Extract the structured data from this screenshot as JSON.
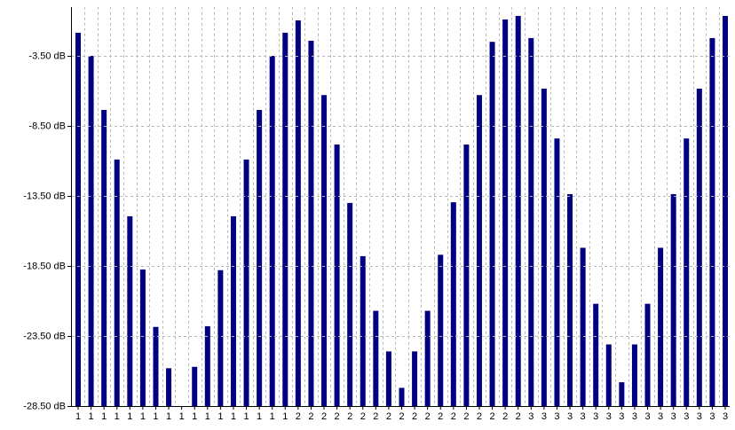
{
  "chart_data": {
    "type": "bar",
    "color": "#000080",
    "grid": true,
    "categories": [
      "1",
      "1",
      "1",
      "1",
      "1",
      "1",
      "1",
      "1",
      "1",
      "1",
      "1",
      "1",
      "1",
      "1",
      "1",
      "1",
      "1",
      "2",
      "2",
      "2",
      "2",
      "2",
      "2",
      "2",
      "2",
      "2",
      "2",
      "2",
      "2",
      "2",
      "2",
      "2",
      "2",
      "2",
      "2",
      "3",
      "3",
      "3",
      "3",
      "3",
      "3",
      "3",
      "3",
      "3",
      "3",
      "3",
      "3",
      "3",
      "3",
      "3",
      "3"
    ],
    "values": [
      -1.85,
      -3.5,
      -7.36,
      -10.9,
      -14.95,
      -18.75,
      -22.85,
      -25.8,
      null,
      -25.7,
      -22.8,
      -18.8,
      -14.95,
      -10.9,
      -7.36,
      -3.5,
      -1.85,
      -0.97,
      -2.42,
      -6.3,
      -9.83,
      -14.0,
      -17.8,
      -21.7,
      -24.6,
      -27.2,
      -24.6,
      -21.7,
      -17.7,
      -13.95,
      -9.83,
      -6.3,
      -2.5,
      -0.9,
      -0.65,
      -2.23,
      -5.84,
      -9.4,
      -13.37,
      -17.2,
      -21.2,
      -24.1,
      -26.8,
      -24.1,
      -21.2,
      -17.2,
      -13.37,
      -9.4,
      -5.84,
      -2.23,
      -0.65
    ],
    "ylim": [
      -28.5,
      0
    ],
    "yticks": [
      {
        "value": -28.5,
        "label": "-28.50 dB"
      },
      {
        "value": -23.5,
        "label": "-23.50 dB"
      },
      {
        "value": -18.5,
        "label": "-18.50 dB"
      },
      {
        "value": -13.5,
        "label": "-13.50 dB"
      },
      {
        "value": -8.5,
        "label": "-8.50 dB"
      },
      {
        "value": -3.5,
        "label": "-3.50 dB"
      }
    ]
  }
}
